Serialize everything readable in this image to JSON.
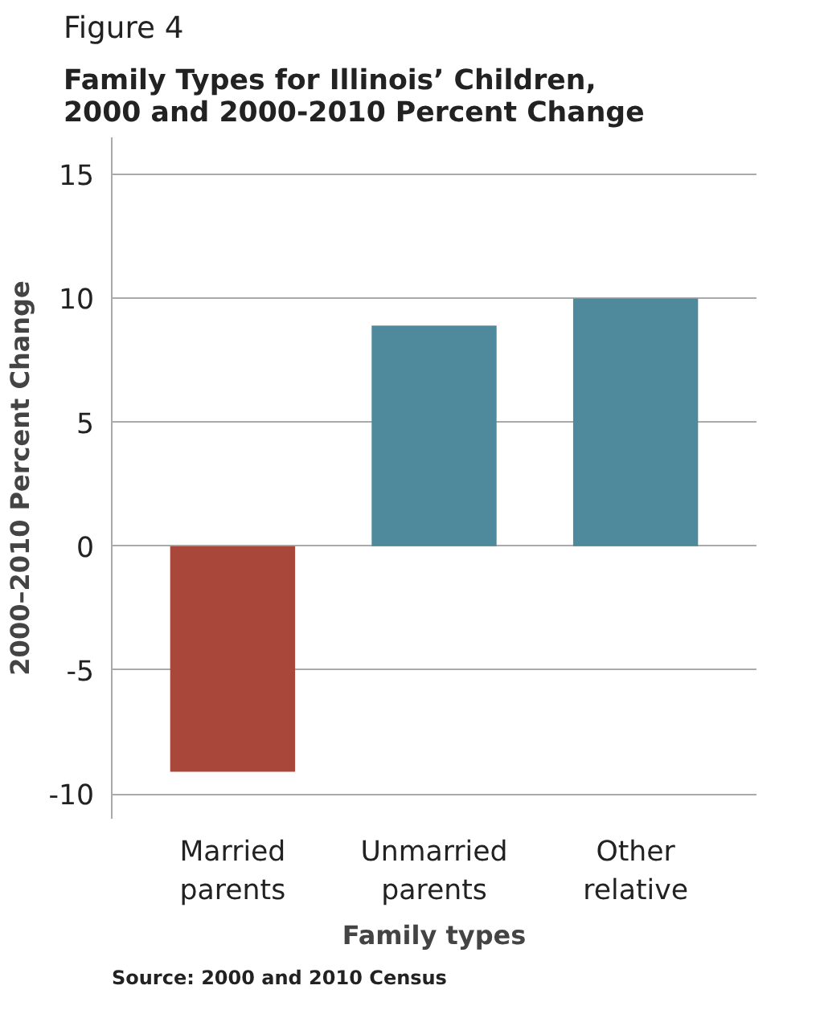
{
  "chart_data": {
    "type": "bar",
    "title": "Figure 4",
    "subtitle": "Family Types for Illinois’ Children, 2000 and 2000-2010 Percent Change",
    "xlabel": "Family types",
    "ylabel": "2000–2010 Percent Change",
    "categories": [
      "Married parents",
      "Unmarried parents",
      "Other relative"
    ],
    "values": [
      -9.1,
      8.9,
      10.0
    ],
    "colors": [
      "#a8473a",
      "#4e8a9c",
      "#4e8a9c"
    ],
    "ylim": [
      -11,
      16.5
    ],
    "yticks": [
      -10,
      -5,
      0,
      5,
      10,
      15
    ],
    "grid": "y",
    "annotations": [
      "Source: 2000 and 2010 Census"
    ]
  }
}
